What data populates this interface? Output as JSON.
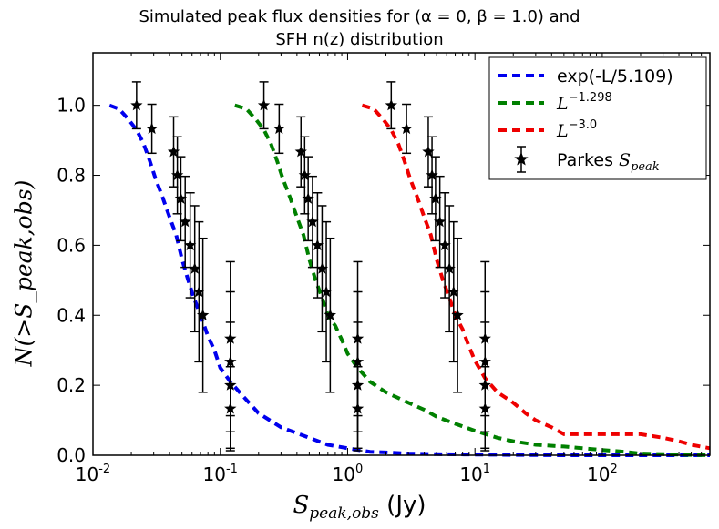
{
  "chart_data": {
    "type": "line",
    "title_line1": "Simulated peak flux densities for (α = 0, β = 1.0) and",
    "title_line2": "SFH n(z) distribution",
    "xlabel_symbol": "S",
    "xlabel_subscript": "peak,obs",
    "xlabel_unit": "(Jy)",
    "ylabel": "N(>S_peak,obs)",
    "xscale": "log",
    "xlim": [
      0.01,
      700
    ],
    "ylim": [
      0.0,
      1.15
    ],
    "x_ticks": [
      0.01,
      0.1,
      1,
      10,
      100
    ],
    "x_tick_mantissa": "10",
    "x_tick_exponents": [
      "-2",
      "-1",
      "0",
      "1",
      "2"
    ],
    "y_ticks": [
      "0.0",
      "0.2",
      "0.4",
      "0.6",
      "0.8",
      "1.0"
    ],
    "legend_position": "top-right",
    "series": [
      {
        "name": "exp(-L/5.109)",
        "legend_text": "exp(-L/5.109)",
        "color": "#0000ee",
        "style": "dashed",
        "x": [
          0.0135,
          0.016,
          0.019,
          0.022,
          0.025,
          0.028,
          0.031,
          0.035,
          0.04,
          0.045,
          0.05,
          0.056,
          0.062,
          0.07,
          0.08,
          0.09,
          0.1,
          0.12,
          0.15,
          0.2,
          0.3,
          0.5,
          0.7,
          1.0,
          1.5,
          2.0,
          3.0,
          5.0,
          10,
          20,
          50,
          100,
          300,
          700
        ],
        "y": [
          1.0,
          0.99,
          0.96,
          0.93,
          0.89,
          0.84,
          0.79,
          0.74,
          0.68,
          0.63,
          0.56,
          0.5,
          0.45,
          0.4,
          0.34,
          0.3,
          0.25,
          0.21,
          0.17,
          0.12,
          0.08,
          0.05,
          0.03,
          0.02,
          0.01,
          0.008,
          0.005,
          0.003,
          0.002,
          0.001,
          0.0,
          0.0,
          0.0,
          0.0
        ]
      },
      {
        "name": "L^-1.298",
        "legend_base": "L",
        "legend_exponent": "−1.298",
        "color": "#008000",
        "style": "dashed",
        "x": [
          0.13,
          0.16,
          0.19,
          0.22,
          0.25,
          0.28,
          0.31,
          0.35,
          0.4,
          0.45,
          0.5,
          0.56,
          0.63,
          0.7,
          0.8,
          0.9,
          1.0,
          1.2,
          1.5,
          2.0,
          3.0,
          4.0,
          5.0,
          7.0,
          10,
          15,
          20,
          30,
          50,
          70,
          100,
          150,
          200,
          300,
          500,
          700
        ],
        "y": [
          1.0,
          0.99,
          0.96,
          0.93,
          0.89,
          0.84,
          0.79,
          0.74,
          0.68,
          0.63,
          0.56,
          0.5,
          0.45,
          0.4,
          0.37,
          0.33,
          0.29,
          0.25,
          0.21,
          0.18,
          0.15,
          0.13,
          0.11,
          0.09,
          0.07,
          0.05,
          0.04,
          0.03,
          0.025,
          0.02,
          0.015,
          0.01,
          0.005,
          0.003,
          0.001,
          0.0
        ]
      },
      {
        "name": "L^-3.0",
        "legend_base": "L",
        "legend_exponent": "−3.0",
        "color": "#ee0000",
        "style": "dashed",
        "x": [
          1.3,
          1.6,
          1.9,
          2.2,
          2.5,
          2.8,
          3.1,
          3.5,
          4.0,
          4.5,
          5.0,
          5.6,
          6.3,
          7.0,
          8.0,
          9.0,
          10,
          12,
          15,
          20,
          25,
          30,
          40,
          50,
          70,
          100,
          150,
          200,
          300,
          400,
          500,
          700
        ],
        "y": [
          1.0,
          0.99,
          0.96,
          0.93,
          0.89,
          0.84,
          0.79,
          0.74,
          0.68,
          0.63,
          0.56,
          0.5,
          0.45,
          0.4,
          0.36,
          0.31,
          0.27,
          0.22,
          0.18,
          0.15,
          0.12,
          0.1,
          0.08,
          0.06,
          0.06,
          0.06,
          0.06,
          0.06,
          0.05,
          0.04,
          0.03,
          0.02
        ]
      }
    ],
    "parkes": {
      "name": "Parkes S_peak",
      "legend_text": "Parkes ",
      "legend_symbol": "S",
      "legend_subscript": "peak",
      "color": "#000000",
      "marker": "star",
      "groups": [
        {
          "x": [
            0.022,
            0.029,
            0.043,
            0.046,
            0.049,
            0.053,
            0.058,
            0.063,
            0.068,
            0.073,
            0.12,
            0.12,
            0.12,
            0.12
          ],
          "y": [
            1.0,
            0.933,
            0.867,
            0.8,
            0.733,
            0.667,
            0.6,
            0.533,
            0.467,
            0.4,
            0.333,
            0.267,
            0.2,
            0.133
          ],
          "yerr": [
            0.067,
            0.07,
            0.1,
            0.11,
            0.12,
            0.13,
            0.15,
            0.18,
            0.2,
            0.22,
            0.22,
            0.2,
            0.18,
            0.12
          ]
        },
        {
          "x": [
            0.22,
            0.29,
            0.43,
            0.46,
            0.49,
            0.53,
            0.58,
            0.63,
            0.68,
            0.73,
            1.2,
            1.2,
            1.2,
            1.2
          ],
          "y": [
            1.0,
            0.933,
            0.867,
            0.8,
            0.733,
            0.667,
            0.6,
            0.533,
            0.467,
            0.4,
            0.333,
            0.267,
            0.2,
            0.133
          ],
          "yerr": [
            0.067,
            0.07,
            0.1,
            0.11,
            0.12,
            0.13,
            0.15,
            0.18,
            0.2,
            0.22,
            0.22,
            0.2,
            0.18,
            0.12
          ]
        },
        {
          "x": [
            2.2,
            2.9,
            4.3,
            4.6,
            4.9,
            5.3,
            5.8,
            6.3,
            6.8,
            7.3,
            12,
            12,
            12,
            12
          ],
          "y": [
            1.0,
            0.933,
            0.867,
            0.8,
            0.733,
            0.667,
            0.6,
            0.533,
            0.467,
            0.4,
            0.333,
            0.267,
            0.2,
            0.133
          ],
          "yerr": [
            0.067,
            0.07,
            0.1,
            0.11,
            0.12,
            0.13,
            0.15,
            0.18,
            0.2,
            0.22,
            0.22,
            0.2,
            0.18,
            0.12
          ]
        }
      ]
    }
  }
}
